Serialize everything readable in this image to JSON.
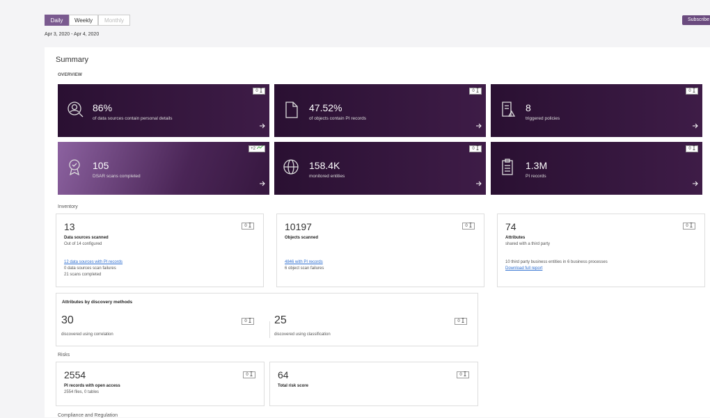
{
  "tabs": [
    "Daily",
    "Weekly",
    "Monthly"
  ],
  "date_range": "Apr 3, 2020 - Apr 4, 2020",
  "subscribe": "Subscribe",
  "title": "Summary",
  "overview": {
    "heading": "OVERVIEW",
    "cards": [
      {
        "value": "86%",
        "label": "of data sources contain personal details",
        "badge": "0"
      },
      {
        "value": "47.52%",
        "label": "of objects contain PI records",
        "badge": "0"
      },
      {
        "value": "8",
        "label": "triggered policies",
        "badge": "0"
      },
      {
        "value": "105",
        "label": "DSAR scans completed",
        "badge": "+2"
      },
      {
        "value": "158.4K",
        "label": "monitored entities",
        "badge": "0"
      },
      {
        "value": "1.3M",
        "label": "PI records",
        "badge": "0"
      }
    ]
  },
  "inventory": {
    "heading": "Inventory",
    "cards": [
      {
        "value": "13",
        "title": "Data sources scanned",
        "subtitle": "Out of 14 configured",
        "badge": "0",
        "details": [
          {
            "link": "12 data sources with PI records"
          },
          {
            "text": "0 data sources scan failures"
          },
          {
            "text": "21 scans completed"
          }
        ]
      },
      {
        "value": "10197",
        "title": "Objects scanned",
        "badge": "0",
        "details": [
          {
            "link": "4846 with PI records"
          },
          {
            "text": "6 object scan failures"
          }
        ]
      },
      {
        "value": "74",
        "title": "Attributes",
        "subtitle": "shared with a third party",
        "badge": "0",
        "details": [
          {
            "text": "10 third party business entities in 6 business processes"
          },
          {
            "link": "Download full report"
          }
        ]
      }
    ]
  },
  "discovery": {
    "heading": "Attributes by discovery methods",
    "items": [
      {
        "value": "30",
        "label": "discovered using correlation",
        "badge": "0"
      },
      {
        "value": "25",
        "label": "discovered using classification",
        "badge": "0"
      }
    ]
  },
  "risks": {
    "heading": "Risks",
    "cards": [
      {
        "value": "2554",
        "title": "PI records with open access",
        "subtitle": "2554 files, 0 tables",
        "badge": "0"
      },
      {
        "value": "64",
        "title": "Total risk score",
        "badge": "0"
      }
    ]
  },
  "compliance_heading": "Compliance and Regulation"
}
